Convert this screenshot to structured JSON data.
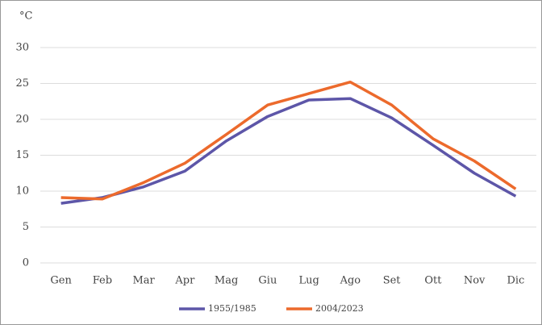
{
  "chart_data": {
    "type": "line",
    "y_label": "°C",
    "categories": [
      "Gen",
      "Feb",
      "Mar",
      "Apr",
      "Mag",
      "Giu",
      "Lug",
      "Ago",
      "Set",
      "Ott",
      "Nov",
      "Dic"
    ],
    "series": [
      {
        "name": "1955/1985",
        "color": "#5d56a8",
        "values": [
          8.3,
          9.1,
          10.6,
          12.8,
          17.0,
          20.4,
          22.7,
          22.9,
          20.2,
          16.4,
          12.5,
          9.3
        ]
      },
      {
        "name": "2004/2023",
        "color": "#ec6a2c",
        "values": [
          9.1,
          8.9,
          11.2,
          13.9,
          17.9,
          22.0,
          23.6,
          25.2,
          22.0,
          17.3,
          14.2,
          10.3
        ]
      }
    ],
    "ylim": [
      0,
      30
    ],
    "yticks": [
      0,
      5,
      10,
      15,
      20,
      25,
      30
    ],
    "grid": true,
    "legend": "bottom"
  }
}
